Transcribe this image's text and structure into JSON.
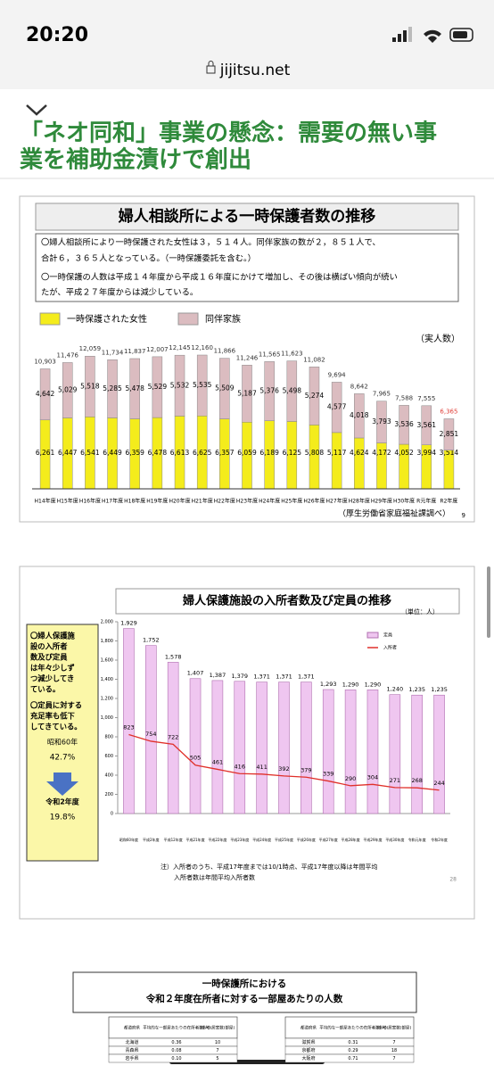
{
  "status_bar": {
    "time": "20:20"
  },
  "browser": {
    "url": "jijitsu.net"
  },
  "article": {
    "heading_lines": [
      "「ネオ同和」事業の懸念：需要の無い事",
      "業を補助金漬けで創出"
    ]
  },
  "chart_data": [
    {
      "type": "stacked_bar",
      "title": "婦人相談所による一時保護者数の推移",
      "notes": [
        "〇婦人相談所により一時保護された女性は３，５１４人。同伴家族の数が２，８５１人で、",
        "合計６，３６５人となっている。（一時保護委託を含む。）",
        "〇一時保護の人数は平成１４年度から平成１６年度にかけて増加し、その後は横ばい傾向が続い",
        "たが、平成２７年度からは減少している。"
      ],
      "unit_label": "（実人数）",
      "source": "（厚生労働省家庭福祉課調べ）",
      "page": "9",
      "categories": [
        "H14年度",
        "H15年度",
        "H16年度",
        "H17年度",
        "H18年度",
        "H19年度",
        "H20年度",
        "H21年度",
        "H22年度",
        "H23年度",
        "H24年度",
        "H25年度",
        "H26年度",
        "H27年度",
        "H28年度",
        "H29年度",
        "H30年度",
        "R元年度",
        "R2年度"
      ],
      "series": [
        {
          "name": "一時保護された女性",
          "color": "#f4ec1c",
          "values": [
            6261,
            6447,
            6541,
            6449,
            6359,
            6478,
            6613,
            6625,
            6357,
            6059,
            6189,
            6125,
            5808,
            5117,
            4624,
            4172,
            4052,
            3994,
            3514
          ],
          "value_labels": [
            "6,261",
            "6,447",
            "6,541",
            "6,449",
            "6,359",
            "6,478",
            "6,613",
            "6,625",
            "6,357",
            "6,059",
            "6,189",
            "6,125",
            "5,808",
            "5,117",
            "4,624",
            "4,172",
            "4,052",
            "3,994",
            "3,514"
          ]
        },
        {
          "name": "同伴家族",
          "color": "#dbbcc0",
          "values": [
            4642,
            5029,
            5518,
            5285,
            5478,
            5529,
            5532,
            5535,
            5509,
            5187,
            5376,
            5498,
            5274,
            4577,
            4018,
            3793,
            3536,
            3561,
            2851
          ],
          "value_labels": [
            "4,642",
            "5,029",
            "5,518",
            "5,285",
            "5,478",
            "5,529",
            "5,532",
            "5,535",
            "5,509",
            "5,187",
            "5,376",
            "5,498",
            "5,274",
            "4,577",
            "4,018",
            "3,793",
            "3,536",
            "3,561",
            "2,851"
          ]
        }
      ],
      "totals": [
        10903,
        11476,
        12059,
        11734,
        11837,
        12007,
        12145,
        12160,
        11866,
        11246,
        11565,
        11623,
        11082,
        9694,
        8642,
        7965,
        7588,
        7555,
        6365
      ],
      "total_labels": [
        "10,903",
        "11,476",
        "12,059",
        "11,734",
        "11,837",
        "12,007",
        "12,145",
        "12,160",
        "11,866",
        "11,246",
        "11,565",
        "11,623",
        "11,082",
        "9,694",
        "8,642",
        "7,965",
        "7,588",
        "7,555",
        "6,365"
      ]
    },
    {
      "type": "bar_line",
      "title": "婦人保護施設の入所者数及び定員の推移",
      "unit_label": "（単位：人）",
      "side_notes": [
        [
          "〇婦人保護施",
          "設の入所者",
          "数及び定員",
          "は年々少しず",
          "つ減少してき",
          "ている。"
        ],
        [
          "〇定員に対する",
          "充足率も低下",
          "してきている。"
        ]
      ],
      "rate_from": {
        "label": "昭和60年",
        "rate": "42.7%"
      },
      "rate_to": {
        "label": "令和2年度",
        "rate": "19.8%"
      },
      "categories": [
        "昭和60年度",
        "平成2年度",
        "平成12年度",
        "平成21年度",
        "平成22年度",
        "平成23年度",
        "平成24年度",
        "平成25年度",
        "平成26年度",
        "平成27年度",
        "平成28年度",
        "平成29年度",
        "平成30年度",
        "令和元年度",
        "令和2年度"
      ],
      "series": [
        {
          "name": "定員",
          "color": "#efc6f0",
          "values": [
            1929,
            1752,
            1578,
            1407,
            1387,
            1379,
            1371,
            1371,
            1371,
            1293,
            1290,
            1290,
            1240,
            1235,
            1235
          ],
          "value_labels": [
            "1,929",
            "1,752",
            "1,578",
            "1,407",
            "1,387",
            "1,379",
            "1,371",
            "1,371",
            "1,371",
            "1,293",
            "1,290",
            "1,290",
            "1,240",
            "1,235",
            "1,235"
          ]
        },
        {
          "name": "入所者",
          "color": "#e0302a",
          "values": [
            823,
            754,
            722,
            505,
            461,
            416,
            411,
            392,
            379,
            339,
            290,
            304,
            271,
            268,
            244
          ]
        }
      ],
      "ylim": [
        0,
        2000
      ],
      "yticks": [
        0,
        200,
        400,
        600,
        800,
        {
          "value": 1000,
          "label": "1,000"
        },
        {
          "value": 1200,
          "label": "1,200"
        },
        {
          "value": 1400,
          "label": "1,400"
        },
        {
          "value": 1600,
          "label": "1,600"
        },
        {
          "value": 1800,
          "label": "1,800"
        },
        {
          "value": 2000,
          "label": "2,000"
        }
      ],
      "footnotes": [
        "注）入所者のうち、平成17年度までは10/1時点、平成17年度以降は年間平均",
        "入所者数は年間平均入所者数"
      ],
      "page": "28"
    }
  ],
  "table": {
    "title_lines": [
      "一時保護所における",
      "令和２年度在所者に対する一部屋あたりの人数"
    ],
    "header": [
      "都道府県",
      "平均的な一部屋あたりの在所者数(人)",
      "(参考)居室数(部屋)"
    ],
    "rows_left": [
      [
        "北海道",
        "0.36",
        "10"
      ],
      [
        "青森県",
        "0.08",
        "7"
      ],
      [
        "岩手県",
        "0.10",
        "5"
      ]
    ],
    "rows_right": [
      [
        "滋賀県",
        "0.31",
        "7"
      ],
      [
        "京都府",
        "0.29",
        "18"
      ],
      [
        "大阪府",
        "0.71",
        "7"
      ]
    ]
  }
}
